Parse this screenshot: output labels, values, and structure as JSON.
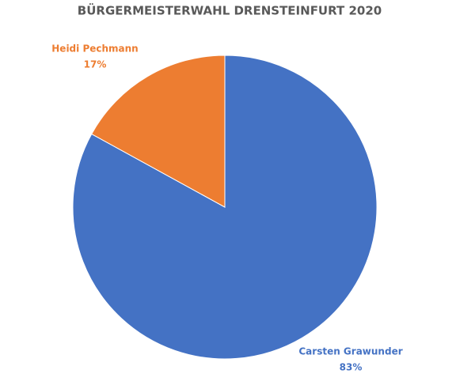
{
  "chart_data": {
    "type": "pie",
    "title": "BÜRGERMEISTERWAHL DRENSTEINFURT 2020",
    "categories": [
      "Carsten Grawunder",
      "Heidi Pechmann"
    ],
    "values": [
      83,
      17
    ],
    "value_labels": [
      "83%",
      "17%"
    ],
    "colors": [
      "#4472c4",
      "#ed7d31"
    ]
  }
}
